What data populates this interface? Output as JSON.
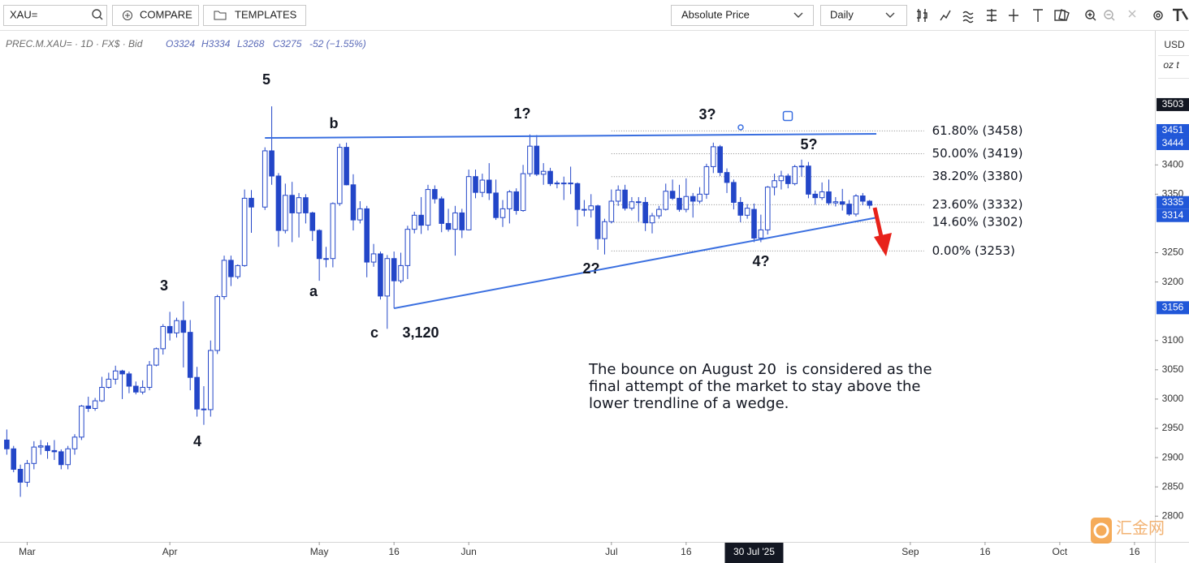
{
  "toolbar": {
    "symbol": "XAU=",
    "compare": "COMPARE",
    "templates": "TEMPLATES",
    "price_mode": "Absolute Price",
    "interval": "Daily"
  },
  "chart_data": {
    "type": "candlestick",
    "legend": {
      "symbol": "PREC.M.XAU= · 1D · FX$ · Bid",
      "open": "O3324",
      "high": "H3334",
      "low": "L3268",
      "close": "C3275",
      "change": "-52 (−1.55%)"
    },
    "currency": "USD",
    "unit": "oz t",
    "color": "#2346c8",
    "x": [
      "2025-02-26",
      "2025-02-27",
      "2025-02-28",
      "2025-03-03",
      "2025-03-04",
      "2025-03-05",
      "2025-03-06",
      "2025-03-07",
      "2025-03-10",
      "2025-03-11",
      "2025-03-12",
      "2025-03-13",
      "2025-03-14",
      "2025-03-17",
      "2025-03-18",
      "2025-03-19",
      "2025-03-20",
      "2025-03-21",
      "2025-03-24",
      "2025-03-25",
      "2025-03-26",
      "2025-03-27",
      "2025-03-28",
      "2025-03-31",
      "2025-04-01",
      "2025-04-02",
      "2025-04-03",
      "2025-04-04",
      "2025-04-07",
      "2025-04-08",
      "2025-04-09",
      "2025-04-10",
      "2025-04-11",
      "2025-04-14",
      "2025-04-15",
      "2025-04-16",
      "2025-04-17",
      "2025-04-21",
      "2025-04-22",
      "2025-04-23",
      "2025-04-24",
      "2025-04-25",
      "2025-04-28",
      "2025-04-29",
      "2025-04-30",
      "2025-05-01",
      "2025-05-02",
      "2025-05-05",
      "2025-05-06",
      "2025-05-07",
      "2025-05-08",
      "2025-05-09",
      "2025-05-12",
      "2025-05-13",
      "2025-05-14",
      "2025-05-15",
      "2025-05-16",
      "2025-05-19",
      "2025-05-20",
      "2025-05-21",
      "2025-05-22",
      "2025-05-23",
      "2025-05-26",
      "2025-05-27",
      "2025-05-28",
      "2025-05-29",
      "2025-05-30",
      "2025-06-02",
      "2025-06-03",
      "2025-06-04",
      "2025-06-05",
      "2025-06-06",
      "2025-06-09",
      "2025-06-10",
      "2025-06-11",
      "2025-06-12",
      "2025-06-13",
      "2025-06-16",
      "2025-06-17",
      "2025-06-18",
      "2025-06-19",
      "2025-06-20",
      "2025-06-23",
      "2025-06-24",
      "2025-06-25",
      "2025-06-26",
      "2025-06-27",
      "2025-06-30",
      "2025-07-01",
      "2025-07-02",
      "2025-07-03",
      "2025-07-04",
      "2025-07-07",
      "2025-07-08",
      "2025-07-09",
      "2025-07-10",
      "2025-07-11",
      "2025-07-14",
      "2025-07-15",
      "2025-07-16",
      "2025-07-17",
      "2025-07-18",
      "2025-07-21",
      "2025-07-22",
      "2025-07-23",
      "2025-07-24",
      "2025-07-25",
      "2025-07-28",
      "2025-07-29",
      "2025-07-30",
      "2025-07-31",
      "2025-08-01",
      "2025-08-04",
      "2025-08-05",
      "2025-08-06",
      "2025-08-07",
      "2025-08-08",
      "2025-08-11",
      "2025-08-12",
      "2025-08-13",
      "2025-08-14",
      "2025-08-15",
      "2025-08-18",
      "2025-08-19",
      "2025-08-20",
      "2025-08-21",
      "2025-08-22"
    ],
    "open": [
      2930,
      2915,
      2880,
      2858,
      2890,
      2918,
      2920,
      2912,
      2910,
      2888,
      2915,
      2935,
      2988,
      2984,
      2997,
      3020,
      3034,
      3048,
      3043,
      3022,
      3012,
      3020,
      3058,
      3086,
      3124,
      3113,
      3134,
      3114,
      3037,
      2983,
      2982,
      3083,
      3175,
      3237,
      3209,
      3228,
      3343,
      3328,
      3424,
      3381,
      3288,
      3348,
      3318,
      3344,
      3318,
      3288,
      3240,
      3240,
      3334,
      3430,
      3366,
      3306,
      3325,
      3234,
      3248,
      3176,
      3240,
      3202,
      3228,
      3290,
      3314,
      3297,
      3358,
      3342,
      3300,
      3290,
      3318,
      3289,
      3380,
      3353,
      3374,
      3352,
      3310,
      3325,
      3354,
      3322,
      3385,
      3432,
      3384,
      3389,
      3368,
      3369,
      3369,
      3368,
      3324,
      3323,
      3330,
      3274,
      3303,
      3338,
      3357,
      3326,
      3337,
      3336,
      3301,
      3313,
      3324,
      3355,
      3343,
      3324,
      3346,
      3338,
      3350,
      3397,
      3431,
      3387,
      3370,
      3336,
      3314,
      3324,
      3275,
      3289,
      3362,
      3373,
      3381,
      3368,
      3397,
      3398,
      3350,
      3344,
      3354,
      3335,
      3337,
      3333,
      3316,
      3347,
      3338
    ],
    "high": [
      2948,
      2920,
      2888,
      2896,
      2928,
      2930,
      2926,
      2930,
      2914,
      2920,
      2940,
      2990,
      3004,
      3002,
      3038,
      3045,
      3057,
      3050,
      3047,
      3030,
      3032,
      3065,
      3088,
      3128,
      3149,
      3139,
      3167,
      3135,
      3055,
      3022,
      3100,
      3178,
      3245,
      3245,
      3230,
      3358,
      3357,
      3430,
      3500,
      3386,
      3368,
      3371,
      3352,
      3350,
      3320,
      3290,
      3260,
      3336,
      3436,
      3438,
      3384,
      3338,
      3330,
      3265,
      3252,
      3246,
      3252,
      3250,
      3296,
      3320,
      3345,
      3366,
      3365,
      3346,
      3325,
      3330,
      3325,
      3392,
      3392,
      3385,
      3403,
      3375,
      3340,
      3357,
      3360,
      3400,
      3452,
      3451,
      3403,
      3395,
      3373,
      3380,
      3397,
      3370,
      3340,
      3350,
      3332,
      3308,
      3358,
      3365,
      3366,
      3345,
      3345,
      3345,
      3318,
      3330,
      3368,
      3375,
      3366,
      3377,
      3352,
      3362,
      3402,
      3438,
      3434,
      3394,
      3375,
      3345,
      3333,
      3334,
      3315,
      3364,
      3385,
      3390,
      3385,
      3400,
      3409,
      3405,
      3356,
      3370,
      3375,
      3345,
      3359,
      3340,
      3350,
      3352,
      3340
    ],
    "low": [
      2905,
      2875,
      2833,
      2850,
      2880,
      2905,
      2898,
      2896,
      2880,
      2880,
      2905,
      2930,
      2978,
      2980,
      2995,
      3018,
      3025,
      3000,
      3010,
      3008,
      3008,
      3015,
      3056,
      3076,
      3100,
      3105,
      3054,
      3015,
      2970,
      2956,
      2970,
      3077,
      3170,
      3193,
      3205,
      3226,
      3284,
      3323,
      3366,
      3260,
      3283,
      3268,
      3276,
      3300,
      3270,
      3202,
      3225,
      3225,
      3330,
      3365,
      3288,
      3300,
      3208,
      3226,
      3170,
      3120,
      3155,
      3198,
      3205,
      3283,
      3282,
      3288,
      3334,
      3285,
      3286,
      3245,
      3275,
      3288,
      3343,
      3345,
      3340,
      3306,
      3294,
      3300,
      3315,
      3320,
      3380,
      3381,
      3366,
      3364,
      3360,
      3340,
      3350,
      3295,
      3312,
      3310,
      3255,
      3247,
      3300,
      3330,
      3322,
      3322,
      3303,
      3287,
      3283,
      3308,
      3322,
      3340,
      3320,
      3319,
      3310,
      3334,
      3342,
      3386,
      3381,
      3352,
      3324,
      3302,
      3308,
      3268,
      3268,
      3281,
      3348,
      3358,
      3360,
      3365,
      3380,
      3343,
      3332,
      3340,
      3331,
      3329,
      3322,
      3313,
      3312,
      3331,
      3325
    ],
    "close": [
      2915,
      2880,
      2858,
      2890,
      2918,
      2920,
      2912,
      2910,
      2888,
      2915,
      2935,
      2988,
      2984,
      2997,
      3020,
      3034,
      3048,
      3043,
      3022,
      3012,
      3020,
      3058,
      3086,
      3124,
      3113,
      3134,
      3114,
      3037,
      2983,
      2982,
      3083,
      3175,
      3237,
      3209,
      3228,
      3343,
      3328,
      3424,
      3381,
      3288,
      3348,
      3318,
      3344,
      3318,
      3288,
      3240,
      3240,
      3334,
      3430,
      3366,
      3306,
      3325,
      3234,
      3248,
      3176,
      3240,
      3202,
      3228,
      3290,
      3314,
      3297,
      3358,
      3342,
      3300,
      3290,
      3318,
      3289,
      3380,
      3353,
      3374,
      3352,
      3310,
      3325,
      3354,
      3322,
      3385,
      3432,
      3384,
      3389,
      3368,
      3369,
      3369,
      3368,
      3324,
      3323,
      3330,
      3274,
      3303,
      3338,
      3357,
      3326,
      3337,
      3336,
      3301,
      3313,
      3324,
      3355,
      3343,
      3324,
      3346,
      3338,
      3350,
      3397,
      3431,
      3387,
      3370,
      3336,
      3314,
      3326,
      3275,
      3289,
      3362,
      3373,
      3381,
      3368,
      3397,
      3398,
      3350,
      3344,
      3354,
      3335,
      3337,
      3333,
      3316,
      3347,
      3338,
      3331
    ],
    "xlim": [
      "2025-02-25",
      "2025-10-21"
    ],
    "xticks": [
      {
        "value": "2025-03-03",
        "label": "Mar"
      },
      {
        "value": "2025-04-01",
        "label": "Apr"
      },
      {
        "value": "2025-05-01",
        "label": "May"
      },
      {
        "value": "2025-05-16",
        "label": "16"
      },
      {
        "value": "2025-06-02",
        "label": "Jun"
      },
      {
        "value": "2025-07-01",
        "label": "Jul"
      },
      {
        "value": "2025-07-16",
        "label": "16"
      },
      {
        "value": "2025-09-01",
        "label": "Sep"
      },
      {
        "value": "2025-09-16",
        "label": "16"
      },
      {
        "value": "2025-10-01",
        "label": "Oct"
      },
      {
        "value": "2025-10-16",
        "label": "16"
      }
    ],
    "ylim": [
      2756,
      3629
    ],
    "yticks": [
      2800,
      2850,
      2900,
      2950,
      3000,
      3050,
      3100,
      3200,
      3250,
      3350,
      3400
    ],
    "grid": false,
    "price_labels": [
      {
        "value": 3503,
        "color": "#131722"
      },
      {
        "value": 3451,
        "color": "#2157d8"
      },
      {
        "value": 3444,
        "color": "#2157d8"
      },
      {
        "value": 3335,
        "color": "#2157d8"
      },
      {
        "value": 3314,
        "color": "#2157d8"
      },
      {
        "value": 3156,
        "color": "#2157d8"
      }
    ],
    "crosshair": {
      "x": "2025-07-30",
      "label": "30 Jul '25"
    },
    "trendlines": [
      {
        "x": [
          "2025-04-21",
          "2025-08-25"
        ],
        "y": [
          3446,
          3453
        ],
        "color": "#3a6fe0"
      },
      {
        "x": [
          "2025-05-16",
          "2025-08-25"
        ],
        "y": [
          3155,
          3310
        ],
        "color": "#3a6fe0"
      }
    ],
    "fib_levels": {
      "x": [
        "2025-07-01",
        "2025-09-03"
      ],
      "levels": [
        {
          "label": "61.80% (3458)",
          "value": 3458
        },
        {
          "label": "50.00% (3419)",
          "value": 3419
        },
        {
          "label": "38.20% (3380)",
          "value": 3380
        },
        {
          "label": "23.60% (3332)",
          "value": 3332
        },
        {
          "label": "14.60% (3302)",
          "value": 3302
        },
        {
          "label": "0.00% (3253)",
          "value": 3253
        }
      ]
    },
    "wave_labels": [
      "5",
      "b",
      "1?",
      "3?",
      "5?",
      "3",
      "a",
      "c",
      "3,120",
      "2?",
      "4?",
      "4"
    ],
    "note": [
      "The bounce on August 20  is considered as the",
      "final attempt of the market to stay above the",
      "lower trendline of a wedge."
    ]
  },
  "watermark": "汇金网"
}
